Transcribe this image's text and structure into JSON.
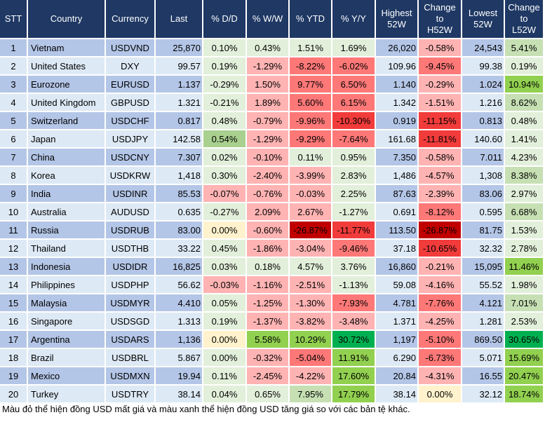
{
  "headers": [
    "STT",
    "Country",
    "Currency",
    "Last",
    "% D/D",
    "% W/W",
    "% YTD",
    "% Y/Y",
    "Highest 52W",
    "Change to H52W",
    "Lowest 52W",
    "Change to L52W"
  ],
  "header_lines": [
    [
      "STT"
    ],
    [
      "Country"
    ],
    [
      "Currency"
    ],
    [
      "Last"
    ],
    [
      "% D/D"
    ],
    [
      "% W/W"
    ],
    [
      "% YTD"
    ],
    [
      "% Y/Y"
    ],
    [
      "Highest",
      "52W"
    ],
    [
      "Change",
      "to",
      "H52W"
    ],
    [
      "Lowest",
      "52W"
    ],
    [
      "Change",
      "to",
      "L52W"
    ]
  ],
  "rows": [
    {
      "stt": "1",
      "country": "Vietnam",
      "currency": "USDVND",
      "last": "25,870",
      "dd": "0.10%",
      "ww": "0.43%",
      "ytd": "1.51%",
      "yy": "1.69%",
      "high": "26,020",
      "chh": "-0.58%",
      "low": "24,543",
      "chl": "5.41%",
      "colors": [
        "L",
        "L",
        "L",
        "L",
        "P",
        "G1"
      ]
    },
    {
      "stt": "2",
      "country": "United States",
      "currency": "DXY",
      "last": "99.57",
      "dd": "0.19%",
      "ww": "-1.29%",
      "ytd": "-8.22%",
      "yy": "-6.02%",
      "high": "109.96",
      "chh": "-9.45%",
      "low": "99.38",
      "chl": "0.19%",
      "colors": [
        "L",
        "P",
        "R",
        "R",
        "R",
        "L"
      ]
    },
    {
      "stt": "3",
      "country": "Eurozone",
      "currency": "EURUSD",
      "last": "1.137",
      "dd": "-0.29%",
      "ww": "1.50%",
      "ytd": "9.77%",
      "yy": "6.50%",
      "high": "1.140",
      "chh": "-0.29%",
      "low": "1.024",
      "chl": "10.94%",
      "colors": [
        "L",
        "P",
        "R",
        "R",
        "P",
        "G2"
      ]
    },
    {
      "stt": "4",
      "country": "United Kingdom",
      "currency": "GBPUSD",
      "last": "1.321",
      "dd": "-0.21%",
      "ww": "1.89%",
      "ytd": "5.60%",
      "yy": "6.15%",
      "high": "1.342",
      "chh": "-1.51%",
      "low": "1.216",
      "chl": "8.62%",
      "colors": [
        "L",
        "P",
        "R",
        "R",
        "P",
        "G1"
      ]
    },
    {
      "stt": "5",
      "country": "Switzerland",
      "currency": "USDCHF",
      "last": "0.817",
      "dd": "0.48%",
      "ww": "-0.79%",
      "ytd": "-9.96%",
      "yy": "-10.30%",
      "high": "0.919",
      "chh": "-11.15%",
      "low": "0.813",
      "chl": "0.48%",
      "colors": [
        "L",
        "P",
        "R",
        "S",
        "S",
        "L"
      ]
    },
    {
      "stt": "6",
      "country": "Japan",
      "currency": "USDJPY",
      "last": "142.58",
      "dd": "0.54%",
      "ww": "-1.29%",
      "ytd": "-9.29%",
      "yy": "-7.64%",
      "high": "161.68",
      "chh": "-11.81%",
      "low": "140.60",
      "chl": "1.41%",
      "colors": [
        "G6",
        "P",
        "R",
        "R",
        "S",
        "L"
      ]
    },
    {
      "stt": "7",
      "country": "China",
      "currency": "USDCNY",
      "last": "7.307",
      "dd": "0.02%",
      "ww": "-0.10%",
      "ytd": "0.11%",
      "yy": "0.95%",
      "high": "7.350",
      "chh": "-0.58%",
      "low": "7.011",
      "chl": "4.23%",
      "colors": [
        "L",
        "P",
        "L",
        "L",
        "P",
        "L"
      ]
    },
    {
      "stt": "8",
      "country": "Korea",
      "currency": "USDKRW",
      "last": "1,418",
      "dd": "0.30%",
      "ww": "-2.40%",
      "ytd": "-3.99%",
      "yy": "2.83%",
      "high": "1,486",
      "chh": "-4.57%",
      "low": "1,308",
      "chl": "8.38%",
      "colors": [
        "L",
        "P",
        "P",
        "L",
        "P",
        "G1"
      ]
    },
    {
      "stt": "9",
      "country": "India",
      "currency": "USDINR",
      "last": "85.53",
      "dd": "-0.07%",
      "ww": "-0.76%",
      "ytd": "-0.03%",
      "yy": "2.25%",
      "high": "87.63",
      "chh": "-2.39%",
      "low": "83.06",
      "chl": "2.97%",
      "colors": [
        "P",
        "P",
        "P",
        "L",
        "P",
        "L"
      ]
    },
    {
      "stt": "10",
      "country": "Australia",
      "currency": "AUDUSD",
      "last": "0.635",
      "dd": "-0.27%",
      "ww": "2.09%",
      "ytd": "2.67%",
      "yy": "-1.27%",
      "high": "0.691",
      "chh": "-8.12%",
      "low": "0.595",
      "chl": "6.68%",
      "colors": [
        "L",
        "P",
        "P",
        "L",
        "R",
        "G1"
      ]
    },
    {
      "stt": "11",
      "country": "Russia",
      "currency": "USDRUB",
      "last": "83.00",
      "dd": "0.00%",
      "ww": "-0.60%",
      "ytd": "-26.87%",
      "yy": "-11.77%",
      "high": "113.50",
      "chh": "-26.87%",
      "low": "81.75",
      "chl": "1.53%",
      "colors": [
        "Y",
        "P",
        "D",
        "S",
        "D",
        "L"
      ]
    },
    {
      "stt": "12",
      "country": "Thailand",
      "currency": "USDTHB",
      "last": "33.22",
      "dd": "0.45%",
      "ww": "-1.86%",
      "ytd": "-3.04%",
      "yy": "-9.46%",
      "high": "37.18",
      "chh": "-10.65%",
      "low": "32.32",
      "chl": "2.78%",
      "colors": [
        "L",
        "P",
        "P",
        "R",
        "S",
        "L"
      ]
    },
    {
      "stt": "13",
      "country": "Indonesia",
      "currency": "USDIDR",
      "last": "16,825",
      "dd": "0.03%",
      "ww": "0.18%",
      "ytd": "4.57%",
      "yy": "3.76%",
      "high": "16,860",
      "chh": "-0.21%",
      "low": "15,095",
      "chl": "11.46%",
      "colors": [
        "L",
        "L",
        "L",
        "L",
        "P",
        "G2"
      ]
    },
    {
      "stt": "14",
      "country": "Philippines",
      "currency": "USDPHP",
      "last": "56.62",
      "dd": "-0.03%",
      "ww": "-1.16%",
      "ytd": "-2.51%",
      "yy": "-1.13%",
      "high": "59.08",
      "chh": "-4.16%",
      "low": "55.52",
      "chl": "1.98%",
      "colors": [
        "P",
        "P",
        "P",
        "L",
        "P",
        "L"
      ]
    },
    {
      "stt": "15",
      "country": "Malaysia",
      "currency": "USDMYR",
      "last": "4.410",
      "dd": "0.05%",
      "ww": "-1.25%",
      "ytd": "-1.30%",
      "yy": "-7.93%",
      "high": "4.781",
      "chh": "-7.76%",
      "low": "4.121",
      "chl": "7.01%",
      "colors": [
        "L",
        "P",
        "P",
        "R",
        "R",
        "G1"
      ]
    },
    {
      "stt": "16",
      "country": "Singapore",
      "currency": "USDSGD",
      "last": "1.313",
      "dd": "0.19%",
      "ww": "-1.37%",
      "ytd": "-3.82%",
      "yy": "-3.48%",
      "high": "1.371",
      "chh": "-4.25%",
      "low": "1.281",
      "chl": "2.53%",
      "colors": [
        "L",
        "P",
        "P",
        "P",
        "P",
        "L"
      ]
    },
    {
      "stt": "17",
      "country": "Argentina",
      "currency": "USDARS",
      "last": "1,136",
      "dd": "0.00%",
      "ww": "5.58%",
      "ytd": "10.29%",
      "yy": "30.72%",
      "high": "1,197",
      "chh": "-5.10%",
      "low": "869.50",
      "chl": "30.65%",
      "colors": [
        "Y",
        "G2",
        "G2",
        "G3",
        "R",
        "G3"
      ]
    },
    {
      "stt": "18",
      "country": "Brazil",
      "currency": "USDBRL",
      "last": "5.867",
      "dd": "0.00%",
      "ww": "-0.32%",
      "ytd": "-5.04%",
      "yy": "11.91%",
      "high": "6.290",
      "chh": "-6.73%",
      "low": "5.071",
      "chl": "15.69%",
      "colors": [
        "L",
        "P",
        "R",
        "G2",
        "R",
        "G2"
      ]
    },
    {
      "stt": "19",
      "country": "Mexico",
      "currency": "USDMXN",
      "last": "19.94",
      "dd": "0.11%",
      "ww": "-2.45%",
      "ytd": "-4.22%",
      "yy": "17.60%",
      "high": "20.84",
      "chh": "-4.31%",
      "low": "16.55",
      "chl": "20.47%",
      "colors": [
        "L",
        "P",
        "P",
        "G2",
        "P",
        "G2"
      ]
    },
    {
      "stt": "20",
      "country": "Turkey",
      "currency": "USDTRY",
      "last": "38.14",
      "dd": "0.04%",
      "ww": "0.65%",
      "ytd": "7.95%",
      "yy": "17.79%",
      "high": "38.14",
      "chh": "0.00%",
      "low": "32.12",
      "chl": "18.74%",
      "colors": [
        "L",
        "L",
        "G1",
        "G2",
        "Y",
        "G2"
      ]
    }
  ],
  "footnote": "Màu đỏ thể hiện đồng USD mất giá và màu xanh thể hiện đồng USD tăng giá so với các bản tệ khác."
}
